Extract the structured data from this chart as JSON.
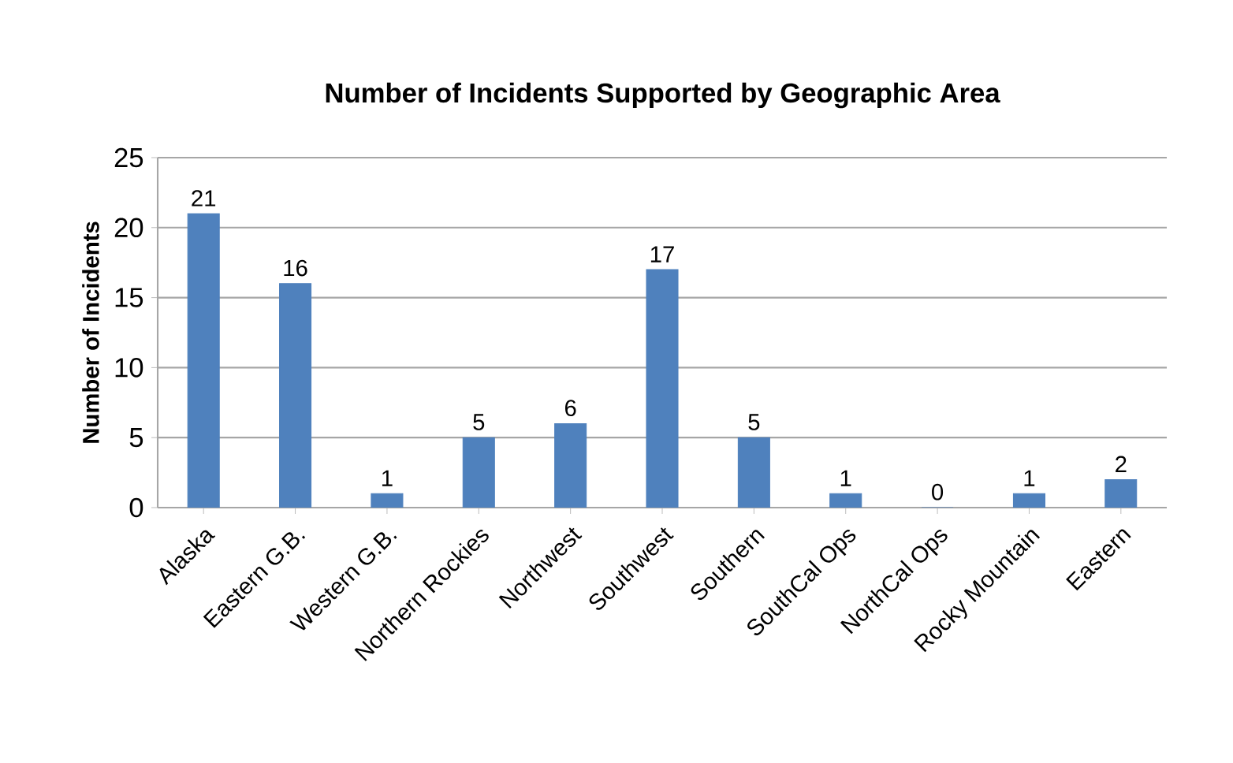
{
  "chart_data": {
    "type": "bar",
    "title": "Number of Incidents Supported by Geographic Area",
    "ylabel": "Number of Incidents",
    "categories": [
      "Alaska",
      "Eastern G.B.",
      "Western G.B.",
      "Northern Rockies",
      "Northwest",
      "Southwest",
      "Southern",
      "SouthCal Ops",
      "NorthCal Ops",
      "Rocky Mountain",
      "Eastern"
    ],
    "values": [
      21,
      16,
      1,
      5,
      6,
      17,
      5,
      1,
      0,
      1,
      2
    ],
    "color": "#4f81bd",
    "ylim": [
      0,
      25
    ],
    "yticks": [
      0,
      5,
      10,
      15,
      20,
      25
    ],
    "grid": "y",
    "data_labels": true
  }
}
